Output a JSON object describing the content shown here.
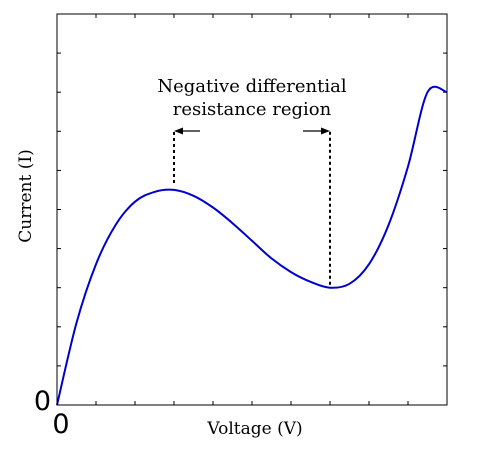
{
  "chart_data": {
    "type": "line",
    "title": "",
    "xlabel": "Voltage (V)",
    "ylabel": "Current (I)",
    "x_tick_label": "0",
    "y_tick_label": "0",
    "xlim": [
      0,
      10
    ],
    "ylim": [
      0,
      10
    ],
    "grid": false,
    "series": [
      {
        "color": "#0000cc",
        "x": [
          0,
          0.5,
          1,
          1.5,
          2,
          2.5,
          3,
          3.5,
          4,
          4.5,
          5,
          5.5,
          6,
          6.5,
          7,
          7.5,
          8,
          8.5,
          9,
          9.5,
          10
        ],
        "y": [
          0,
          2.1,
          3.6,
          4.6,
          5.2,
          5.45,
          5.5,
          5.35,
          5.05,
          4.65,
          4.2,
          3.75,
          3.4,
          3.15,
          3.0,
          3.1,
          3.6,
          4.6,
          6.1,
          8.0,
          8.0
        ]
      }
    ],
    "annotation": {
      "text_line1": "Negative differential",
      "text_line2": "resistance region",
      "x_start": 3,
      "x_end": 7
    }
  }
}
